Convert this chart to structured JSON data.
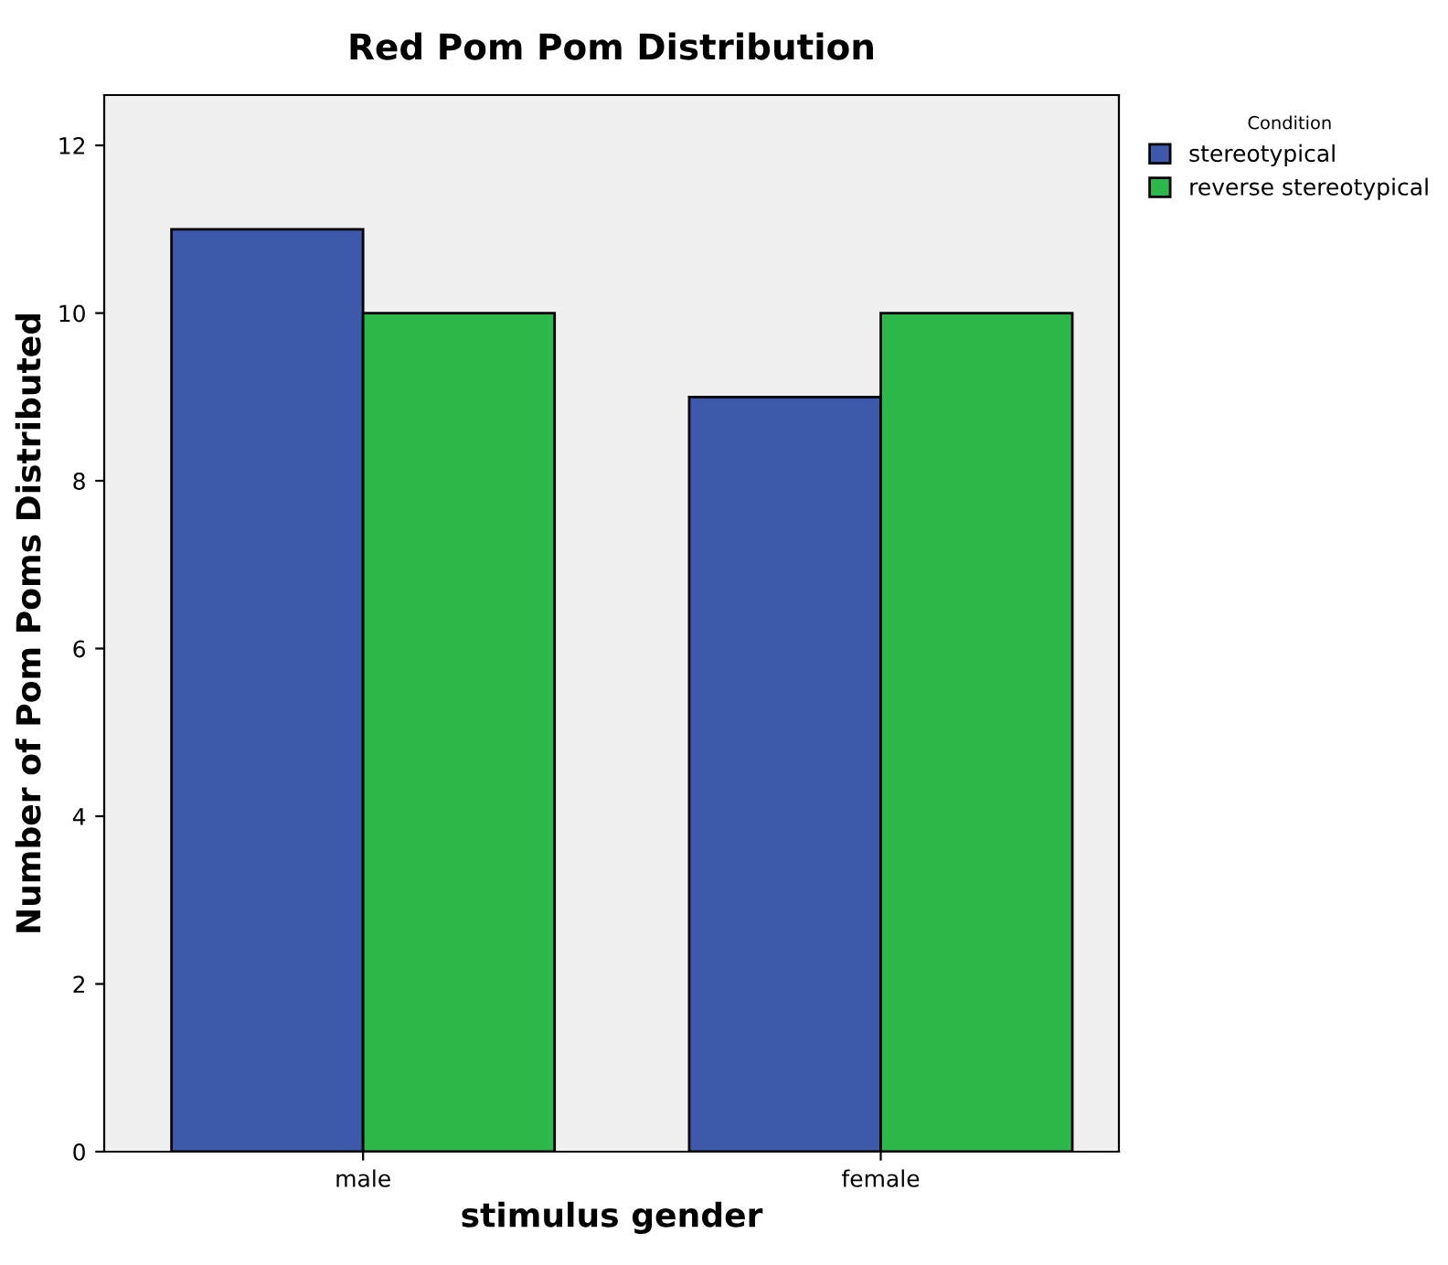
{
  "chart_data": {
    "type": "bar",
    "title": "Red Pom Pom Distribution",
    "xlabel": "stimulus gender",
    "ylabel": "Number of Pom Poms Distributed",
    "legend_title": "Condition",
    "categories": [
      "male",
      "female"
    ],
    "series": [
      {
        "name": "stereotypical",
        "color": "#3e58ac",
        "values": [
          11,
          9
        ]
      },
      {
        "name": "reverse stereotypical",
        "color": "#2db84b",
        "values": [
          10,
          10
        ]
      }
    ],
    "ylim": [
      0,
      12.6
    ],
    "yticks": [
      0,
      2,
      4,
      6,
      8,
      10,
      12
    ],
    "grid": false,
    "legend": "top right"
  }
}
